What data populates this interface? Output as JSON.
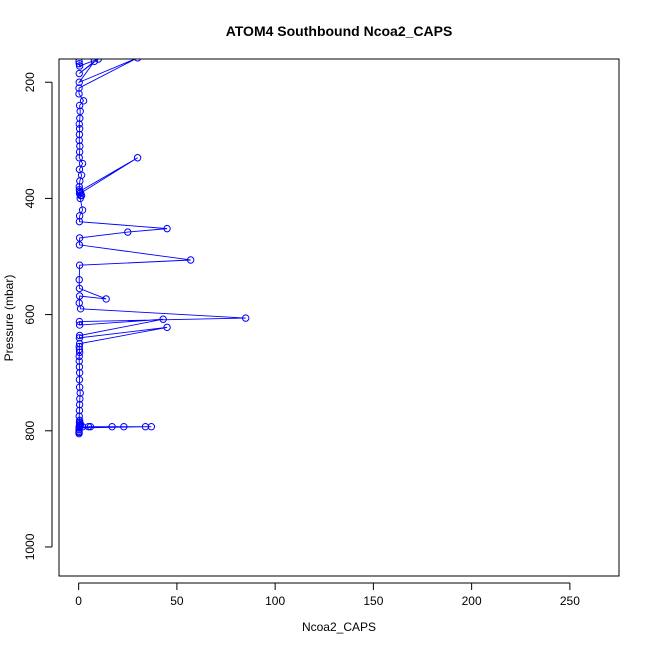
{
  "chart_data": {
    "type": "line",
    "title": "ATOM4 Southbound Ncoa2_CAPS",
    "xlabel": "Ncoa2_CAPS",
    "ylabel": "Pressure (mbar)",
    "xlim": [
      -10,
      275
    ],
    "ylim": [
      1050,
      160
    ],
    "y_reversed": true,
    "x_ticks": [
      0,
      50,
      100,
      150,
      200,
      250
    ],
    "y_ticks": [
      200,
      400,
      600,
      800,
      1000
    ],
    "grid": false,
    "legend": "none",
    "line_color": "#0000ff",
    "marker": "open-circle",
    "series": [
      {
        "x": [
          0.2,
          0.3,
          0.5,
          10.0,
          0.3,
          8.0,
          0.3,
          30.0,
          0.2,
          0.2,
          2.5,
          0.5,
          0.8,
          0.6,
          0.3,
          0.5,
          0.4,
          0.3,
          0.6,
          0.5,
          0.3,
          2.0,
          0.4,
          1.5,
          0.6,
          0.3,
          0.4,
          0.5,
          30.0,
          0.5,
          1.0,
          1.0,
          1.5,
          0.8,
          2.0,
          0.5,
          0.4,
          45.0,
          25.0,
          0.5,
          0.4,
          57.0,
          0.5,
          0.3,
          0.4,
          14.0,
          0.5,
          0.3,
          1.0,
          85.0,
          0.4,
          0.5,
          43.0,
          0.5,
          0.4,
          45.0,
          0.5,
          0.3,
          0.4,
          0.5,
          0.3,
          0.3,
          0.4,
          0.5,
          0.4,
          0.5,
          0.8,
          0.6,
          0.5,
          0.4,
          0.3,
          0.5,
          0.4,
          0.6,
          1.0,
          0.5,
          0.4,
          0.5,
          2.0,
          0.3,
          6.0,
          5.0,
          17.0,
          23.0,
          34.0,
          37.0,
          0.3,
          0.2,
          0.2,
          0.2,
          0.2
        ],
        "y": [
          164,
          168,
          172,
          160,
          185,
          164,
          200,
          158,
          210,
          220,
          232,
          240,
          250,
          262,
          272,
          280,
          290,
          300,
          310,
          320,
          330,
          340,
          350,
          360,
          370,
          380,
          385,
          388,
          330,
          392,
          395,
          390,
          395,
          400,
          420,
          430,
          440,
          452,
          458,
          468,
          480,
          506,
          515,
          540,
          555,
          573,
          568,
          580,
          590,
          606,
          612,
          618,
          608,
          636,
          640,
          622,
          650,
          655,
          660,
          665,
          672,
          680,
          690,
          700,
          712,
          725,
          735,
          745,
          755,
          765,
          775,
          782,
          785,
          787,
          789,
          790,
          791,
          792,
          793,
          794,
          793,
          793,
          793,
          793,
          793,
          793,
          795,
          798,
          801,
          803,
          805
        ]
      }
    ]
  }
}
